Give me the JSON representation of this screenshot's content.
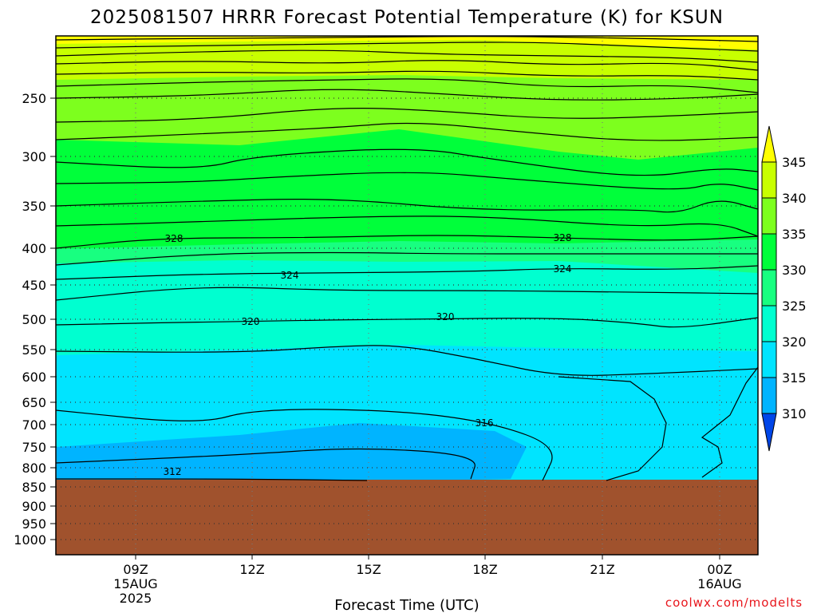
{
  "chart_data": {
    "type": "heatmap",
    "title": "2025081507 HRRR Forecast Potential Temperature (K) for KSUN",
    "xlabel": "Forecast Time (UTC)",
    "ylabel": "",
    "y_axis_scale": "log-pressure",
    "y_ticks": [
      "250",
      "300",
      "350",
      "400",
      "450",
      "500",
      "550",
      "600",
      "650",
      "700",
      "750",
      "800",
      "850",
      "900",
      "950",
      "1000"
    ],
    "x_ticks": [
      {
        "label": "09Z",
        "sub1": "15AUG",
        "sub2": "2025"
      },
      {
        "label": "12Z",
        "sub1": "",
        "sub2": ""
      },
      {
        "label": "15Z",
        "sub1": "",
        "sub2": ""
      },
      {
        "label": "18Z",
        "sub1": "",
        "sub2": ""
      },
      {
        "label": "21Z",
        "sub1": "",
        "sub2": ""
      },
      {
        "label": "00Z",
        "sub1": "16AUG",
        "sub2": ""
      }
    ],
    "colorbar": {
      "labels": [
        "345",
        "340",
        "335",
        "330",
        "325",
        "320",
        "315",
        "310"
      ],
      "colors": [
        "#ffff00",
        "#c8ff00",
        "#7dff1e",
        "#00ff3a",
        "#18ff80",
        "#00ffd0",
        "#00e4ff",
        "#00b4ff",
        "#0078ff",
        "#0046e8"
      ]
    },
    "contour_labels": [
      "328",
      "328",
      "324",
      "324",
      "320",
      "320",
      "316",
      "312"
    ],
    "ground_color": "#a0522d",
    "grid": true
  },
  "credit": "coolwx.com/modelts"
}
